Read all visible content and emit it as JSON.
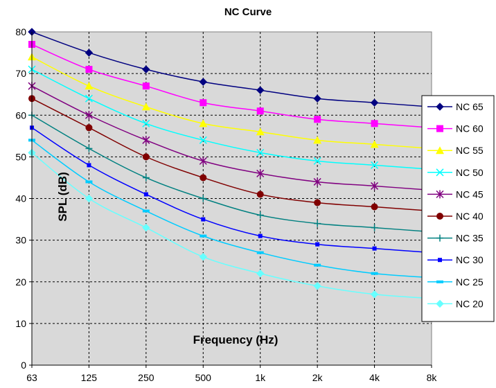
{
  "chart_data": {
    "type": "line",
    "title": "NC Curve",
    "xlabel": "Frequency (Hz)",
    "ylabel": "SPL (dB)",
    "categories": [
      "63",
      "125",
      "250",
      "500",
      "1k",
      "2k",
      "4k",
      "8k"
    ],
    "yticks": [
      "0",
      "10",
      "20",
      "30",
      "40",
      "50",
      "60",
      "70",
      "80"
    ],
    "ylim": [
      0,
      80
    ],
    "grid": true,
    "legend_position": "right",
    "series": [
      {
        "name": "NC 65",
        "color": "#000080",
        "marker": "diamond",
        "values": [
          80,
          75,
          71,
          68,
          66,
          64,
          63,
          62
        ]
      },
      {
        "name": "NC 60",
        "color": "#ff00ff",
        "marker": "square",
        "values": [
          77,
          71,
          67,
          63,
          61,
          59,
          58,
          57
        ]
      },
      {
        "name": "NC 55",
        "color": "#ffff00",
        "marker": "triangle",
        "values": [
          74,
          67,
          62,
          58,
          56,
          54,
          53,
          52
        ]
      },
      {
        "name": "NC 50",
        "color": "#00ffff",
        "marker": "x",
        "values": [
          71,
          64,
          58,
          54,
          51,
          49,
          48,
          47
        ]
      },
      {
        "name": "NC 45",
        "color": "#800080",
        "marker": "star",
        "values": [
          67,
          60,
          54,
          49,
          46,
          44,
          43,
          42
        ]
      },
      {
        "name": "NC 40",
        "color": "#800000",
        "marker": "circle",
        "values": [
          64,
          57,
          50,
          45,
          41,
          39,
          38,
          37
        ]
      },
      {
        "name": "NC 35",
        "color": "#008080",
        "marker": "plus",
        "values": [
          60,
          52,
          45,
          40,
          36,
          34,
          33,
          32
        ]
      },
      {
        "name": "NC 30",
        "color": "#0000ff",
        "marker": "smallsquare",
        "values": [
          57,
          48,
          41,
          35,
          31,
          29,
          28,
          27
        ]
      },
      {
        "name": "NC 25",
        "color": "#00ccff",
        "marker": "dash",
        "values": [
          54,
          44,
          37,
          31,
          27,
          24,
          22,
          21
        ]
      },
      {
        "name": "NC 20",
        "color": "#66ffff",
        "marker": "diamond",
        "values": [
          51,
          40,
          33,
          26,
          22,
          19,
          17,
          16
        ]
      }
    ]
  }
}
